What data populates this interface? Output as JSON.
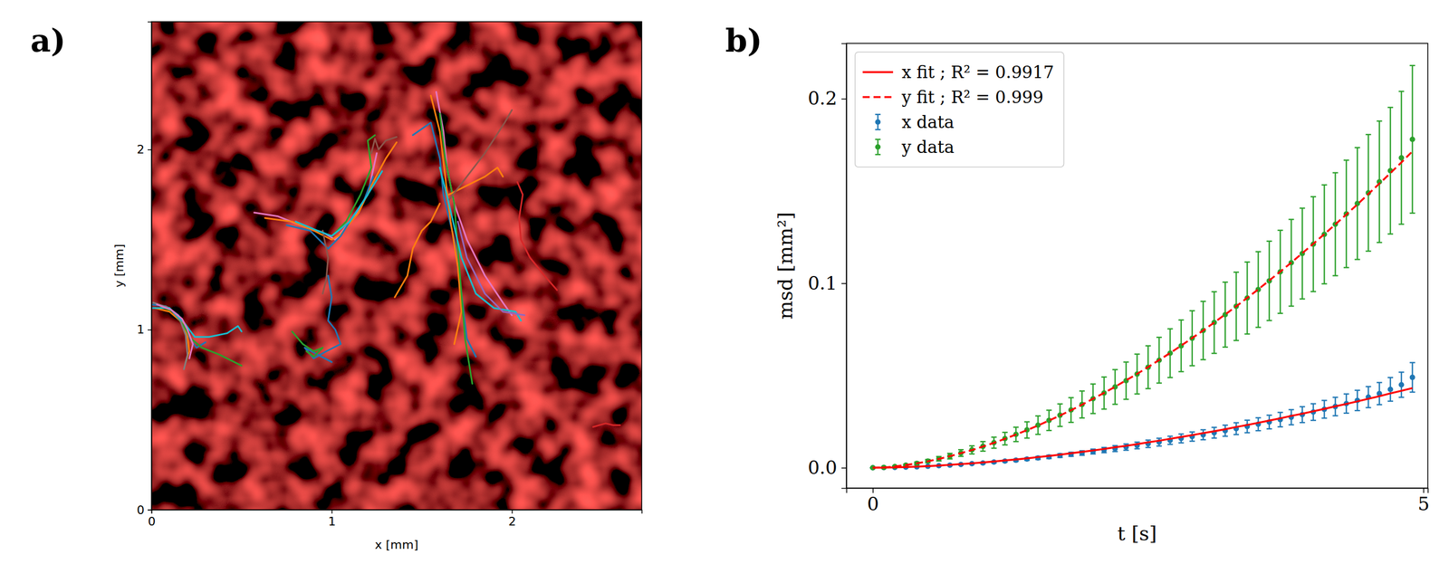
{
  "chart_data": [
    {
      "type": "line",
      "panel_label": "a)",
      "x_label": "x [mm]",
      "y_label": "y [mm]",
      "xlim": [
        0,
        2.72
      ],
      "ylim": [
        0,
        2.71
      ],
      "xticks": [
        0,
        1,
        2
      ],
      "yticks": [
        0,
        1,
        2
      ],
      "series": [
        {
          "color": "#1f77b4",
          "x": [
            0,
            0.08,
            0.15,
            0.19,
            0.22,
            0.25,
            0.3
          ],
          "y": [
            1.14,
            1.13,
            1.08,
            1.0,
            0.94,
            0.9,
            0.93
          ]
        },
        {
          "color": "#ff7f0e",
          "x": [
            0.02,
            0.1,
            0.17,
            0.2,
            0.21,
            0.19
          ],
          "y": [
            1.12,
            1.1,
            1.04,
            0.96,
            0.88,
            0.82
          ]
        },
        {
          "color": "#2ca02c",
          "x": [
            0.05,
            0.12,
            0.18,
            0.22,
            0.28,
            0.38,
            0.5
          ],
          "y": [
            1.13,
            1.1,
            1.02,
            0.95,
            0.9,
            0.86,
            0.8
          ]
        },
        {
          "color": "#7f7f7f",
          "x": [
            0.01,
            0.1,
            0.16,
            0.19,
            0.2,
            0.18
          ],
          "y": [
            1.15,
            1.12,
            1.05,
            0.97,
            0.86,
            0.78
          ]
        },
        {
          "color": "#17becf",
          "x": [
            0.0,
            0.1,
            0.18,
            0.24,
            0.32,
            0.42,
            0.48,
            0.5
          ],
          "y": [
            1.12,
            1.12,
            1.04,
            0.96,
            0.96,
            0.98,
            1.02,
            0.99
          ]
        },
        {
          "color": "#e377c2",
          "x": [
            0.03,
            0.11,
            0.17,
            0.2,
            0.23,
            0.21
          ],
          "y": [
            1.14,
            1.11,
            1.06,
            1.0,
            0.92,
            0.84
          ]
        },
        {
          "color": "#e377c2",
          "x": [
            0.57,
            0.7,
            0.85,
            0.95,
            1.02,
            1.12,
            1.2,
            1.25
          ],
          "y": [
            1.65,
            1.63,
            1.57,
            1.54,
            1.5,
            1.62,
            1.75,
            1.98
          ]
        },
        {
          "color": "#ff7f0e",
          "x": [
            0.63,
            0.78,
            0.9,
            1.0,
            1.05,
            1.15,
            1.22,
            1.3,
            1.36
          ],
          "y": [
            1.62,
            1.6,
            1.55,
            1.5,
            1.53,
            1.65,
            1.8,
            1.95,
            2.04
          ]
        },
        {
          "color": "#1f77b4",
          "x": [
            0.75,
            0.88,
            0.98,
            1.05,
            1.1,
            1.18,
            1.23
          ],
          "y": [
            1.58,
            1.55,
            1.45,
            1.52,
            1.6,
            1.72,
            1.85
          ]
        },
        {
          "color": "#2ca02c",
          "x": [
            1.0,
            1.08,
            1.16,
            1.22,
            1.2,
            1.24
          ],
          "y": [
            1.52,
            1.6,
            1.75,
            1.9,
            2.05,
            2.08
          ]
        },
        {
          "color": "#8c564b",
          "x": [
            0.95,
            0.98,
            0.97,
            0.95
          ],
          "y": [
            1.55,
            1.4,
            1.28,
            1.2
          ]
        },
        {
          "color": "#17becf",
          "x": [
            0.8,
            0.92,
            1.0,
            1.1,
            1.2,
            1.28
          ],
          "y": [
            1.6,
            1.55,
            1.52,
            1.6,
            1.75,
            1.88
          ]
        },
        {
          "color": "#1f77b4",
          "x": [
            0.98,
            1.0,
            0.98,
            1.02,
            1.05,
            0.97,
            0.9,
            0.85,
            1.0
          ],
          "y": [
            1.3,
            1.18,
            1.05,
            1.0,
            0.92,
            0.88,
            0.84,
            0.9,
            0.82
          ]
        },
        {
          "color": "#2ca02c",
          "x": [
            0.78,
            0.84,
            0.9,
            0.95,
            0.9,
            0.86
          ],
          "y": [
            0.99,
            0.92,
            0.88,
            0.9,
            0.85,
            0.88
          ]
        },
        {
          "color": "#1f77b4",
          "x": [
            1.45,
            1.55,
            1.6,
            1.62,
            1.68,
            1.72,
            1.75,
            1.8
          ],
          "y": [
            2.08,
            2.15,
            1.95,
            1.75,
            1.5,
            1.2,
            0.95,
            0.85
          ]
        },
        {
          "color": "#ff7f0e",
          "x": [
            1.55,
            1.6,
            1.63,
            1.66,
            1.7,
            1.72,
            1.68
          ],
          "y": [
            2.3,
            2.1,
            1.85,
            1.6,
            1.35,
            1.1,
            0.92
          ]
        },
        {
          "color": "#e377c2",
          "x": [
            1.58,
            1.62,
            1.64,
            1.68,
            1.75,
            1.85,
            1.95,
            2.0
          ],
          "y": [
            2.32,
            2.1,
            1.9,
            1.7,
            1.5,
            1.3,
            1.15,
            1.08
          ]
        },
        {
          "color": "#2ca02c",
          "x": [
            1.6,
            1.63,
            1.68,
            1.7,
            1.72,
            1.74,
            1.78
          ],
          "y": [
            2.2,
            1.95,
            1.7,
            1.45,
            1.2,
            0.95,
            0.7
          ]
        },
        {
          "color": "#ff7f0e",
          "x": [
            1.65,
            1.75,
            1.85,
            1.92,
            1.95
          ],
          "y": [
            1.75,
            1.8,
            1.85,
            1.9,
            1.85
          ]
        },
        {
          "color": "#8c564b",
          "x": [
            1.65,
            1.75,
            1.85,
            1.96,
            2.0
          ],
          "y": [
            1.72,
            1.85,
            1.98,
            2.15,
            2.22
          ]
        },
        {
          "color": "#17becf",
          "x": [
            1.6,
            1.65,
            1.72,
            1.8,
            1.9,
            2.02,
            2.05
          ],
          "y": [
            1.9,
            1.7,
            1.4,
            1.2,
            1.12,
            1.1,
            1.05
          ]
        },
        {
          "color": "#9467bd",
          "x": [
            1.7,
            1.75,
            1.85,
            1.95,
            2.07
          ],
          "y": [
            1.6,
            1.4,
            1.2,
            1.1,
            1.08
          ]
        },
        {
          "color": "#ff7f0e",
          "x": [
            1.35,
            1.42,
            1.45,
            1.5,
            1.55,
            1.6
          ],
          "y": [
            1.18,
            1.3,
            1.45,
            1.55,
            1.6,
            1.7
          ]
        },
        {
          "color": "#d62728",
          "x": [
            2.03,
            2.06,
            2.04,
            2.05,
            2.1,
            2.18,
            2.25
          ],
          "y": [
            1.82,
            1.75,
            1.62,
            1.5,
            1.4,
            1.3,
            1.22
          ]
        },
        {
          "color": "#d62728",
          "x": [
            2.45,
            2.52,
            2.56,
            2.6
          ],
          "y": [
            0.46,
            0.48,
            0.47,
            0.47
          ]
        },
        {
          "color": "#8c564b",
          "x": [
            1.22,
            1.24,
            1.26,
            1.3,
            1.36
          ],
          "y": [
            1.98,
            2.06,
            2.0,
            2.05,
            2.07
          ]
        }
      ]
    },
    {
      "type": "scatter",
      "panel_label": "b)",
      "x_label": "t [s]",
      "y_label": "msd [mm²]",
      "xlim": [
        -0.24,
        5.04
      ],
      "ylim": [
        -0.011,
        0.23
      ],
      "xticks": [
        0,
        5
      ],
      "yticks": [
        {
          "value": 0,
          "label": "0.0"
        },
        {
          "value": 0.1,
          "label": "0.1"
        },
        {
          "value": 0.2,
          "label": "0.2"
        }
      ],
      "legend": "upper left",
      "x": [
        0,
        0.1,
        0.2,
        0.3,
        0.4,
        0.5,
        0.6,
        0.7,
        0.8,
        0.9,
        1.0,
        1.1,
        1.2,
        1.3,
        1.4,
        1.5,
        1.6,
        1.7,
        1.8,
        1.9,
        2.0,
        2.1,
        2.2,
        2.3,
        2.4,
        2.5,
        2.6,
        2.7,
        2.8,
        2.9,
        3.0,
        3.1,
        3.2,
        3.3,
        3.4,
        3.5,
        3.6,
        3.7,
        3.8,
        3.9,
        4.0,
        4.1,
        4.2,
        4.3,
        4.4,
        4.5,
        4.6,
        4.7,
        4.8,
        4.9
      ],
      "series": [
        {
          "name": "x fit ; R² = 0.9917",
          "type": "line",
          "line_style": "solid",
          "color": "#ff0000",
          "values": [
            0,
            0.0001,
            0.0002,
            0.0004,
            0.0006,
            0.0009,
            0.0012,
            0.0016,
            0.002,
            0.0024,
            0.0029,
            0.0034,
            0.004,
            0.0045,
            0.0051,
            0.0058,
            0.0064,
            0.0071,
            0.0079,
            0.0086,
            0.0094,
            0.0102,
            0.0111,
            0.0119,
            0.0128,
            0.0138,
            0.0147,
            0.0157,
            0.0167,
            0.0177,
            0.0188,
            0.0198,
            0.0209,
            0.0221,
            0.0232,
            0.0244,
            0.0256,
            0.0268,
            0.0281,
            0.0293,
            0.0306,
            0.0319,
            0.0333,
            0.0346,
            0.036,
            0.0374,
            0.0388,
            0.0403,
            0.0417,
            0.0432
          ]
        },
        {
          "name": "y fit ; R² = 0.999",
          "type": "line",
          "line_style": "dashed",
          "color": "#ff0000",
          "values": [
            0,
            0.0002,
            0.0007,
            0.0015,
            0.0024,
            0.0035,
            0.0048,
            0.0063,
            0.0079,
            0.0096,
            0.0115,
            0.0135,
            0.0157,
            0.018,
            0.0204,
            0.0229,
            0.0256,
            0.0283,
            0.0312,
            0.0342,
            0.0374,
            0.0406,
            0.0439,
            0.0474,
            0.0509,
            0.0546,
            0.0584,
            0.0622,
            0.0662,
            0.0703,
            0.0744,
            0.0787,
            0.0831,
            0.0875,
            0.0921,
            0.0967,
            0.1015,
            0.1063,
            0.1112,
            0.1163,
            0.1214,
            0.1266,
            0.1319,
            0.1373,
            0.1427,
            0.1484,
            0.154,
            0.1597,
            0.1655,
            0.1715
          ]
        },
        {
          "name": "x data",
          "type": "scatter",
          "marker": "circle",
          "color": "#1f77b4",
          "values": [
            0,
            0.0001,
            0.0002,
            0.0003,
            0.0005,
            0.0008,
            0.0011,
            0.0014,
            0.0018,
            0.0022,
            0.0026,
            0.0031,
            0.0036,
            0.0041,
            0.0047,
            0.0053,
            0.0059,
            0.0066,
            0.0073,
            0.008,
            0.0088,
            0.0096,
            0.0104,
            0.0112,
            0.0121,
            0.013,
            0.0139,
            0.0149,
            0.0159,
            0.0169,
            0.0179,
            0.019,
            0.0201,
            0.0212,
            0.0224,
            0.0236,
            0.0248,
            0.0261,
            0.0274,
            0.0288,
            0.0302,
            0.0317,
            0.0332,
            0.0348,
            0.0365,
            0.0383,
            0.0402,
            0.0425,
            0.045,
            0.049
          ],
          "errors": [
            0,
            0,
            0,
            0.0001,
            0.0001,
            0.0001,
            0.0002,
            0.0002,
            0.0003,
            0.0003,
            0.0004,
            0.0005,
            0.0005,
            0.0006,
            0.0007,
            0.0008,
            0.0009,
            0.001,
            0.0011,
            0.0012,
            0.0013,
            0.0014,
            0.0016,
            0.0017,
            0.0018,
            0.002,
            0.0021,
            0.0022,
            0.0024,
            0.0025,
            0.0027,
            0.0029,
            0.003,
            0.0032,
            0.0034,
            0.0035,
            0.0037,
            0.0039,
            0.0041,
            0.0043,
            0.0045,
            0.0048,
            0.005,
            0.0052,
            0.0055,
            0.0057,
            0.006,
            0.0064,
            0.0068,
            0.008
          ]
        },
        {
          "name": "y data",
          "type": "scatter",
          "marker": "circle",
          "color": "#2ca02c",
          "values": [
            0,
            0.0002,
            0.0007,
            0.0014,
            0.0024,
            0.0036,
            0.0049,
            0.0063,
            0.008,
            0.0097,
            0.0116,
            0.0136,
            0.0158,
            0.0181,
            0.0205,
            0.0231,
            0.0257,
            0.0285,
            0.0313,
            0.0343,
            0.0374,
            0.0405,
            0.0438,
            0.0472,
            0.0508,
            0.0545,
            0.0583,
            0.0621,
            0.0661,
            0.0702,
            0.0744,
            0.0787,
            0.083,
            0.0875,
            0.092,
            0.0966,
            0.1013,
            0.1062,
            0.1111,
            0.1161,
            0.1212,
            0.1265,
            0.132,
            0.1376,
            0.1432,
            0.149,
            0.155,
            0.161,
            0.168,
            0.178
          ],
          "errors": [
            0,
            0.0001,
            0.0003,
            0.0005,
            0.0007,
            0.0009,
            0.0012,
            0.0015,
            0.0018,
            0.0022,
            0.0026,
            0.003,
            0.0034,
            0.0039,
            0.0044,
            0.005,
            0.0055,
            0.0061,
            0.0067,
            0.0073,
            0.008,
            0.0087,
            0.0094,
            0.0101,
            0.0108,
            0.0116,
            0.0124,
            0.0132,
            0.014,
            0.0149,
            0.0158,
            0.0167,
            0.0176,
            0.0185,
            0.0195,
            0.0205,
            0.0215,
            0.0225,
            0.0235,
            0.0246,
            0.0257,
            0.0268,
            0.0279,
            0.0291,
            0.0303,
            0.0316,
            0.0329,
            0.0343,
            0.036,
            0.04
          ]
        }
      ]
    }
  ]
}
